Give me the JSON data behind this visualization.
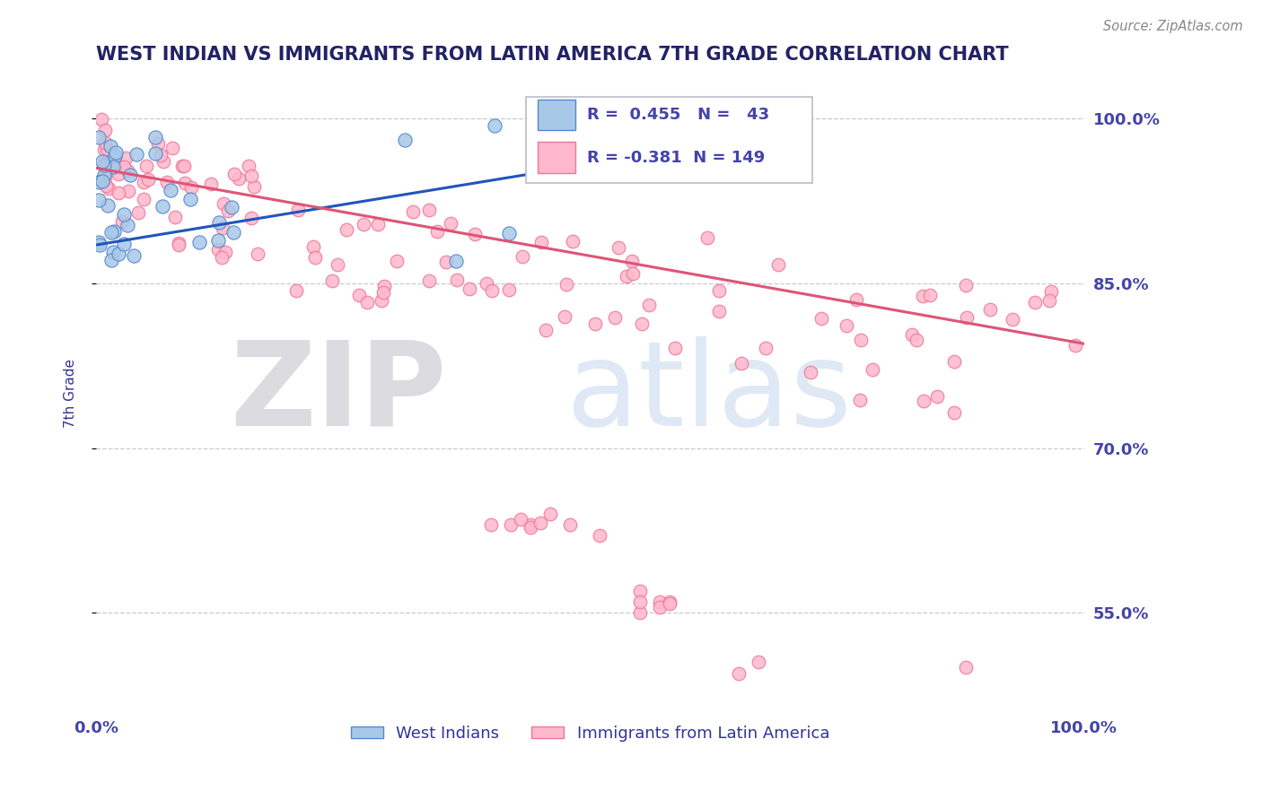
{
  "title": "WEST INDIAN VS IMMIGRANTS FROM LATIN AMERICA 7TH GRADE CORRELATION CHART",
  "source_text": "Source: ZipAtlas.com",
  "ylabel": "7th Grade",
  "xlim": [
    0.0,
    1.0
  ],
  "ylim": [
    0.46,
    1.04
  ],
  "yticks": [
    0.55,
    0.7,
    0.85,
    1.0
  ],
  "ytick_labels": [
    "55.0%",
    "70.0%",
    "85.0%",
    "100.0%"
  ],
  "blue_R": 0.455,
  "blue_N": 43,
  "pink_R": -0.381,
  "pink_N": 149,
  "blue_fill_color": "#A8C8E8",
  "pink_fill_color": "#FFB8CC",
  "blue_edge_color": "#5588CC",
  "pink_edge_color": "#EE7799",
  "blue_line_color": "#2255BB",
  "pink_line_color": "#DD5577",
  "title_color": "#222266",
  "axis_label_color": "#333399",
  "tick_color": "#4444AA",
  "grid_color": "#BBBBCC",
  "background_color": "#FFFFFF",
  "legend_label_blue": "West Indians",
  "legend_label_pink": "Immigrants from Latin America",
  "blue_trend_x": [
    0.0,
    0.68
  ],
  "blue_trend_y": [
    0.885,
    0.985
  ],
  "pink_trend_x": [
    0.0,
    1.0
  ],
  "pink_trend_y": [
    0.955,
    0.795
  ]
}
